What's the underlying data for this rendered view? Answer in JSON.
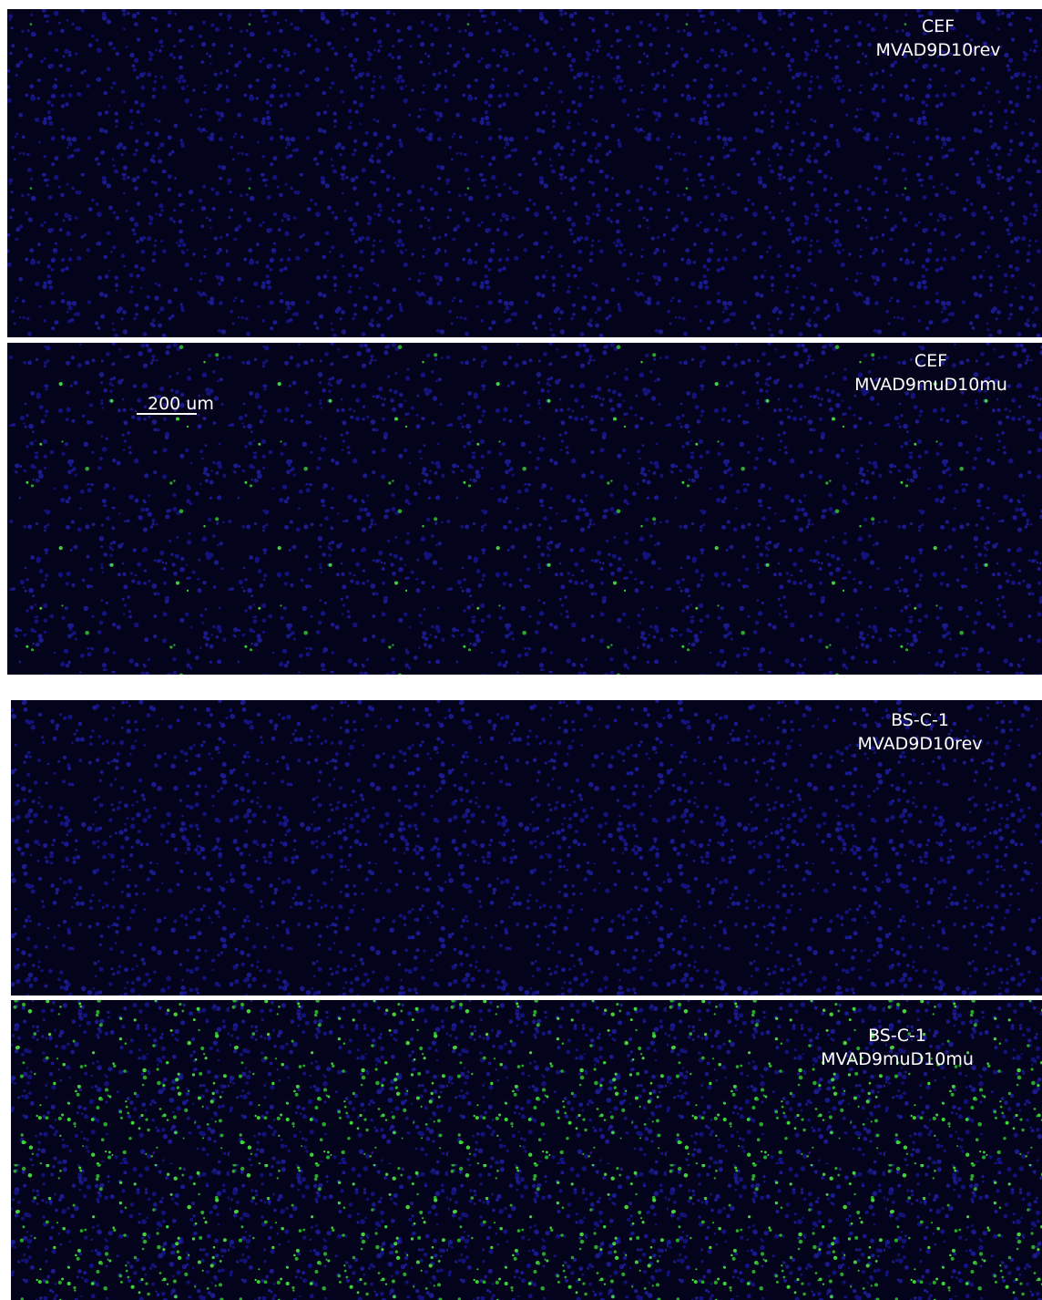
{
  "panels": [
    {
      "cell_line": "CEF",
      "virus": "MVAD9D10rev"
    },
    {
      "cell_line": "CEF",
      "virus": "MVAD9muD10mu"
    },
    {
      "cell_line": "BS-C-1",
      "virus": "MVAD9D10rev"
    },
    {
      "cell_line": "BS-C-1",
      "virus": "MVAD9muD10mu"
    }
  ],
  "scale_bar": "200 um"
}
